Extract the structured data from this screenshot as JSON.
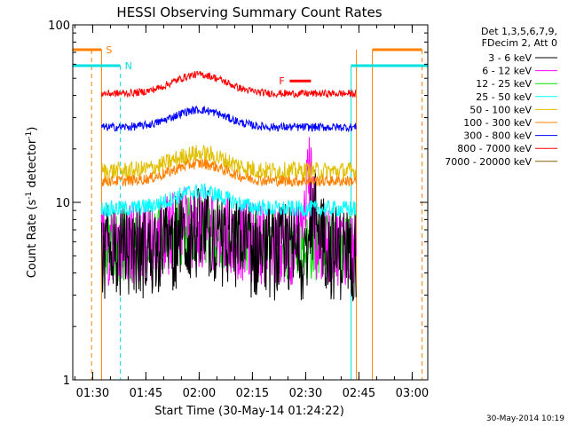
{
  "chart_data": {
    "type": "line",
    "title": "HESSI Observing Summary Count Rates",
    "xlabel": "Start Time (30-May-14 01:24:22)",
    "ylabel_parts": [
      "Count Rate (s",
      "-1",
      " detector",
      "-1",
      ")"
    ],
    "footer_date": "30-May-2014 10:19",
    "x_range_min": [
      84.4,
      184.4
    ],
    "x_ticks": [
      {
        "m": 90,
        "label": "01:30"
      },
      {
        "m": 105,
        "label": "01:45"
      },
      {
        "m": 120,
        "label": "02:00"
      },
      {
        "m": 135,
        "label": "02:15"
      },
      {
        "m": 150,
        "label": "02:30"
      },
      {
        "m": 165,
        "label": "02:45"
      },
      {
        "m": 180,
        "label": "03:00"
      }
    ],
    "y_scale": "log",
    "y_range": [
      1,
      100
    ],
    "y_ticks": [
      {
        "v": 1,
        "label": "1"
      },
      {
        "v": 10,
        "label": "10"
      },
      {
        "v": 100,
        "label": "100"
      }
    ],
    "legend_header": [
      "Det 1,3,5,6,7,9,",
      "FDecim 2, Att 0"
    ],
    "data_span_min": [
      92.5,
      164.3
    ],
    "series": [
      {
        "name": "3 - 6 keV",
        "color": "#000000",
        "base": 5.2,
        "jitter": 0.35
      },
      {
        "name": "6 - 12 keV",
        "color": "#ff00ff",
        "base": 5.8,
        "jitter": 0.3
      },
      {
        "name": "12 - 25 keV",
        "color": "#00e000",
        "base": 5.6,
        "jitter": 0.25
      },
      {
        "name": "25 - 50 keV",
        "color": "#00ffff",
        "base": 9.2,
        "jitter": 0.09
      },
      {
        "name": "50 - 100 keV",
        "color": "#e0c000",
        "base": 15.0,
        "jitter": 0.1
      },
      {
        "name": "100 - 300 keV",
        "color": "#ff8000",
        "base": 13.2,
        "jitter": 0.06
      },
      {
        "name": "300 - 800 keV",
        "color": "#0000ff",
        "base": 26.5,
        "jitter": 0.045
      },
      {
        "name": "800 - 7000 keV",
        "color": "#ff0000",
        "base": 41.0,
        "jitter": 0.04
      },
      {
        "name": "7000 - 20000 keV",
        "color": "#806000",
        "base": 0,
        "jitter": 0
      }
    ],
    "flags": [
      {
        "label": "S",
        "color": "#ff8000",
        "level": 0.93,
        "segments": [
          [
            84.4,
            92.5
          ],
          [
            168.8,
            182.8
          ]
        ],
        "dashed": [
          [
            89.7
          ],
          [
            182.8
          ]
        ],
        "solid": [
          [
            92.5
          ],
          [
            164.3
          ],
          [
            168.8
          ]
        ]
      },
      {
        "label": "N",
        "color": "#00e0e0",
        "level": 0.885,
        "segments": [
          [
            84.4,
            97.8
          ],
          [
            162.8,
            184.4
          ]
        ],
        "dashed": [
          [
            97.8
          ]
        ],
        "solid": [
          [
            162.8
          ]
        ]
      },
      {
        "label": "F",
        "color": "#ff0000",
        "level": 0.842,
        "segments": [
          [
            145.5,
            151.5
          ]
        ]
      }
    ]
  }
}
